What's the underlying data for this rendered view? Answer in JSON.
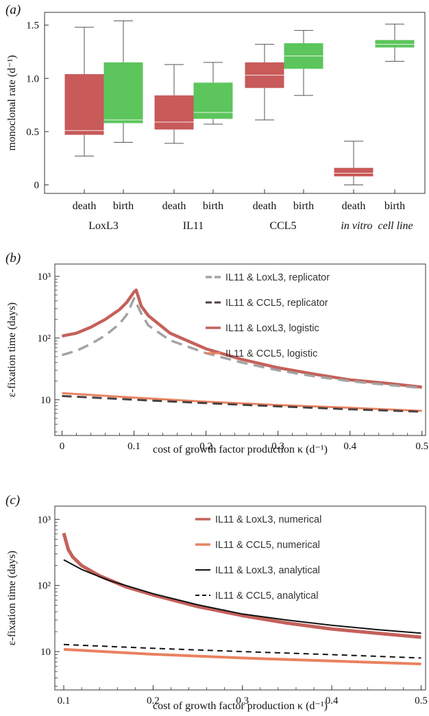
{
  "colors": {
    "death": "#c85a5a",
    "birth": "#5cc55c",
    "il11_loxl3_logistic": "#c4615b",
    "il11_ccl5_logistic": "#e8825f",
    "il11_loxl3_replicator": "#a3a3a3",
    "il11_ccl5_replicator": "#4a4040",
    "analytical": "#111111"
  },
  "chart_data": [
    {
      "id": "a",
      "type": "box",
      "panel_label": "(a)",
      "ylabel": "monoclonal rate (d⁻¹)",
      "ylim": [
        -0.08,
        1.62
      ],
      "yticks": [
        "0",
        "0.5",
        "1.0",
        "1.5"
      ],
      "ytick_values": [
        0,
        0.5,
        1.0,
        1.5
      ],
      "groups": [
        "LoxL3",
        "IL11",
        "CCL5",
        "in vitro  cell line"
      ],
      "boxes": [
        {
          "group": "LoxL3",
          "label": "death",
          "kind": "death",
          "min": 0.27,
          "q1": 0.47,
          "median": 0.51,
          "q3": 1.04,
          "max": 1.48
        },
        {
          "group": "LoxL3",
          "label": "birth",
          "kind": "birth",
          "min": 0.4,
          "q1": 0.58,
          "median": 0.61,
          "q3": 1.15,
          "max": 1.54
        },
        {
          "group": "IL11",
          "label": "death",
          "kind": "death",
          "min": 0.39,
          "q1": 0.52,
          "median": 0.59,
          "q3": 0.84,
          "max": 1.13
        },
        {
          "group": "IL11",
          "label": "birth",
          "kind": "birth",
          "min": 0.57,
          "q1": 0.62,
          "median": 0.68,
          "q3": 0.96,
          "max": 1.15
        },
        {
          "group": "CCL5",
          "label": "death",
          "kind": "death",
          "min": 0.61,
          "q1": 0.91,
          "median": 1.03,
          "q3": 1.15,
          "max": 1.32
        },
        {
          "group": "CCL5",
          "label": "birth",
          "kind": "birth",
          "min": 0.84,
          "q1": 1.09,
          "median": 1.21,
          "q3": 1.33,
          "max": 1.45
        },
        {
          "group": "in vitro  cell line",
          "label": "death",
          "kind": "death",
          "min": 0.0,
          "q1": 0.08,
          "median": 0.11,
          "q3": 0.16,
          "max": 0.41
        },
        {
          "group": "in vitro  cell line",
          "label": "birth",
          "kind": "birth",
          "min": 1.16,
          "q1": 1.29,
          "median": 1.32,
          "q3": 1.36,
          "max": 1.51
        }
      ]
    },
    {
      "id": "b",
      "type": "line",
      "panel_label": "(b)",
      "xlabel": "cost of growth factor production κ (d⁻¹)",
      "ylabel": "ε-fixation time (days)",
      "xlim": [
        -0.01,
        0.505
      ],
      "ylim_log": [
        0.42,
        3.2
      ],
      "yscale": "log",
      "xticks": [
        "0",
        "0.1",
        "0.2",
        "0.3",
        "0.4",
        "0.5"
      ],
      "xtick_values": [
        0,
        0.1,
        0.2,
        0.3,
        0.4,
        0.5
      ],
      "yticks": [
        "10",
        "10²",
        "10³"
      ],
      "ytick_values": [
        10,
        100,
        1000
      ],
      "legend": [
        "IL11 & LoxL3, replicator",
        "IL11 & CCL5, replicator",
        "IL11 & LoxL3, logistic",
        "IL11 & CCL5, logistic"
      ],
      "series": [
        {
          "name": "IL11 & LoxL3, replicator",
          "style": "dashed-gray",
          "x": [
            0,
            0.02,
            0.04,
            0.06,
            0.08,
            0.09,
            0.1,
            0.11,
            0.12,
            0.15,
            0.2,
            0.25,
            0.3,
            0.35,
            0.4,
            0.45,
            0.5
          ],
          "y": [
            53,
            62,
            80,
            110,
            170,
            240,
            440,
            250,
            160,
            92,
            57,
            40,
            30,
            24,
            20,
            17.5,
            15.5
          ]
        },
        {
          "name": "IL11 & CCL5, replicator",
          "style": "dashed-dark",
          "x": [
            0,
            0.1,
            0.2,
            0.3,
            0.4,
            0.5
          ],
          "y": [
            11.5,
            10.0,
            8.8,
            7.8,
            7.0,
            6.4
          ]
        },
        {
          "name": "IL11 & LoxL3, logistic",
          "style": "solid-red",
          "x": [
            0,
            0.02,
            0.04,
            0.06,
            0.08,
            0.09,
            0.1,
            0.103,
            0.11,
            0.12,
            0.15,
            0.2,
            0.25,
            0.3,
            0.35,
            0.4,
            0.45,
            0.5
          ],
          "y": [
            108,
            120,
            150,
            200,
            290,
            380,
            560,
            600,
            330,
            230,
            120,
            67,
            45,
            33,
            26,
            21,
            18.5,
            16
          ]
        },
        {
          "name": "IL11 & CCL5, logistic",
          "style": "solid-orange",
          "x": [
            0,
            0.1,
            0.2,
            0.3,
            0.4,
            0.5
          ],
          "y": [
            12.8,
            10.8,
            9.3,
            8.2,
            7.4,
            6.6
          ]
        }
      ]
    },
    {
      "id": "c",
      "type": "line",
      "panel_label": "(c)",
      "xlabel": "cost of growth factor production κ (d⁻¹)",
      "ylabel": "ε-fixation time (days)",
      "xlim": [
        0.09,
        0.505
      ],
      "ylim_log": [
        0.42,
        3.2
      ],
      "yscale": "log",
      "xticks": [
        "0.1",
        "0.2",
        "0.3",
        "0.4",
        "0.5"
      ],
      "xtick_values": [
        0.1,
        0.2,
        0.3,
        0.4,
        0.5
      ],
      "yticks": [
        "10",
        "10²",
        "10³"
      ],
      "ytick_values": [
        10,
        100,
        1000
      ],
      "legend": [
        "IL11 & LoxL3, numerical",
        "IL11 & CCL5, numerical",
        "IL11 & LoxL3, analytical",
        "IL11 & CCL5, analytical"
      ],
      "series": [
        {
          "name": "IL11 & LoxL3, numerical",
          "style": "thick-red",
          "x": [
            0.1,
            0.105,
            0.11,
            0.12,
            0.14,
            0.17,
            0.2,
            0.25,
            0.3,
            0.35,
            0.4,
            0.45,
            0.5
          ],
          "y": [
            620,
            350,
            270,
            200,
            140,
            95,
            72,
            48,
            35,
            27,
            22,
            19,
            16.5
          ]
        },
        {
          "name": "IL11 & CCL5, numerical",
          "style": "thick-orange",
          "x": [
            0.1,
            0.2,
            0.3,
            0.4,
            0.5
          ],
          "y": [
            10.8,
            9.1,
            8.0,
            7.2,
            6.5
          ]
        },
        {
          "name": "IL11 & LoxL3, analytical",
          "style": "solid-black",
          "x": [
            0.1,
            0.12,
            0.15,
            0.2,
            0.25,
            0.3,
            0.35,
            0.4,
            0.45,
            0.5
          ],
          "y": [
            245,
            175,
            120,
            75,
            51,
            37,
            30,
            25,
            21.5,
            19
          ]
        },
        {
          "name": "IL11 & CCL5, analytical",
          "style": "dashed-black",
          "x": [
            0.1,
            0.2,
            0.3,
            0.4,
            0.5
          ],
          "y": [
            12.8,
            11.2,
            10.0,
            9.0,
            8.0
          ]
        }
      ]
    }
  ]
}
